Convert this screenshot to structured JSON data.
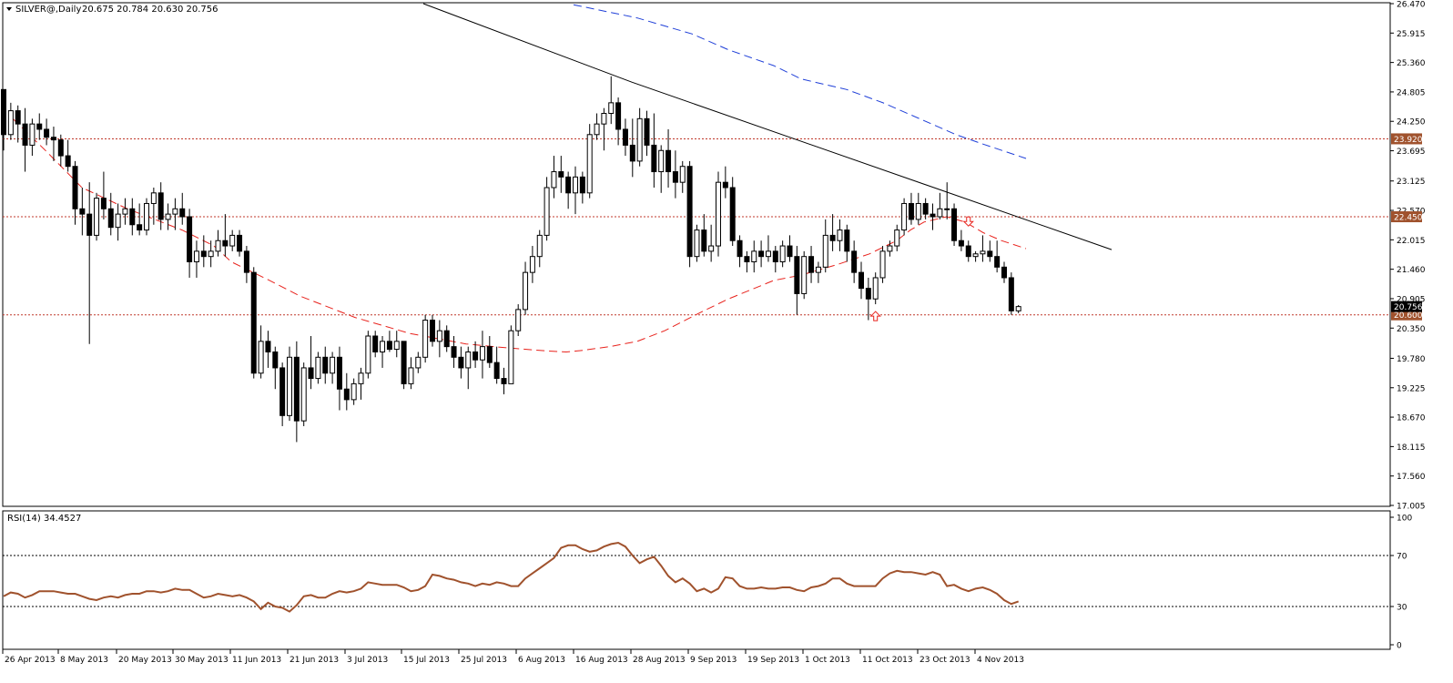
{
  "chart_data": [
    {
      "type": "candlestick",
      "symbol_label": "SILVER@,Daily",
      "ohlc_label": "20.675 20.784 20.630 20.756",
      "ylim": [
        17.005,
        26.47
      ],
      "y_ticks": [
        "26.470",
        "25.915",
        "25.360",
        "24.805",
        "24.250",
        "23.695",
        "23.125",
        "22.570",
        "22.015",
        "21.460",
        "20.905",
        "20.350",
        "19.780",
        "19.225",
        "18.670",
        "18.115",
        "17.560",
        "17.005"
      ],
      "x_tick_labels": [
        "26 Apr 2013",
        "8 May 2013",
        "20 May 2013",
        "30 May 2013",
        "11 Jun 2013",
        "21 Jun 2013",
        "3 Jul 2013",
        "15 Jul 2013",
        "25 Jul 2013",
        "6 Aug 2013",
        "16 Aug 2013",
        "28 Aug 2013",
        "9 Sep 2013",
        "19 Sep 2013",
        "1 Oct 2013",
        "11 Oct 2013",
        "23 Oct 2013",
        "4 Nov 2013"
      ],
      "horizontal_levels": [
        {
          "value": 23.92,
          "label": "23.920"
        },
        {
          "value": 22.45,
          "label": "22.450"
        },
        {
          "value": 20.6,
          "label": "20.600"
        }
      ],
      "current_price_label": "20.756",
      "current_price": 20.756,
      "colors": {
        "up_body": "#ffffff",
        "down_body": "#000000",
        "wick": "#000000",
        "level_line": "#c0392b",
        "level_tag": "#a0522d",
        "ma_fast": "#e8221c",
        "ma_slow": "#1f3fd8",
        "trendline": "#000000",
        "price_tag": "#000000"
      },
      "candles": [
        [
          24.85,
          24.85,
          23.7,
          24.0
        ],
        [
          24.0,
          24.6,
          23.9,
          24.45
        ],
        [
          24.45,
          24.55,
          23.85,
          24.2
        ],
        [
          24.2,
          24.5,
          23.3,
          23.8
        ],
        [
          23.8,
          24.3,
          23.6,
          24.2
        ],
        [
          24.2,
          24.4,
          23.9,
          24.1
        ],
        [
          24.1,
          24.3,
          23.8,
          23.95
        ],
        [
          23.95,
          24.15,
          23.5,
          23.9
        ],
        [
          23.9,
          24.0,
          23.4,
          23.6
        ],
        [
          23.6,
          23.9,
          23.3,
          23.4
        ],
        [
          23.4,
          23.5,
          22.3,
          22.6
        ],
        [
          22.6,
          23.0,
          22.1,
          22.5
        ],
        [
          22.5,
          23.1,
          20.05,
          22.1
        ],
        [
          22.1,
          22.9,
          22.0,
          22.8
        ],
        [
          22.8,
          23.3,
          22.4,
          22.6
        ],
        [
          22.6,
          22.9,
          22.1,
          22.25
        ],
        [
          22.25,
          22.7,
          22.0,
          22.5
        ],
        [
          22.5,
          22.8,
          22.3,
          22.6
        ],
        [
          22.6,
          22.8,
          22.1,
          22.3
        ],
        [
          22.3,
          22.7,
          22.1,
          22.2
        ],
        [
          22.2,
          22.8,
          22.1,
          22.7
        ],
        [
          22.7,
          23.0,
          22.3,
          22.9
        ],
        [
          22.9,
          23.1,
          22.2,
          22.4
        ],
        [
          22.4,
          22.7,
          22.2,
          22.5
        ],
        [
          22.5,
          22.8,
          22.2,
          22.6
        ],
        [
          22.6,
          22.9,
          22.3,
          22.45
        ],
        [
          22.45,
          22.6,
          21.3,
          21.6
        ],
        [
          21.6,
          22.0,
          21.3,
          21.8
        ],
        [
          21.8,
          22.1,
          21.5,
          21.7
        ],
        [
          21.7,
          22.0,
          21.5,
          21.8
        ],
        [
          21.8,
          22.2,
          21.7,
          22.0
        ],
        [
          22.0,
          22.5,
          21.7,
          21.9
        ],
        [
          21.9,
          22.2,
          21.8,
          22.1
        ],
        [
          22.1,
          22.2,
          21.7,
          21.8
        ],
        [
          21.8,
          21.9,
          21.2,
          21.4
        ],
        [
          21.4,
          21.5,
          19.4,
          19.5
        ],
        [
          19.5,
          20.4,
          19.4,
          20.1
        ],
        [
          20.1,
          20.3,
          19.6,
          19.9
        ],
        [
          19.9,
          20.0,
          19.2,
          19.6
        ],
        [
          19.6,
          19.7,
          18.5,
          18.7
        ],
        [
          18.7,
          20.0,
          18.6,
          19.8
        ],
        [
          19.8,
          20.1,
          18.2,
          18.6
        ],
        [
          18.6,
          19.7,
          18.5,
          19.6
        ],
        [
          19.6,
          20.2,
          19.2,
          19.4
        ],
        [
          19.4,
          19.9,
          19.3,
          19.8
        ],
        [
          19.8,
          20.0,
          19.3,
          19.5
        ],
        [
          19.5,
          19.9,
          19.3,
          19.8
        ],
        [
          19.8,
          20.0,
          18.8,
          19.2
        ],
        [
          19.2,
          19.5,
          18.8,
          19.0
        ],
        [
          19.0,
          19.4,
          18.9,
          19.3
        ],
        [
          19.3,
          19.6,
          19.0,
          19.5
        ],
        [
          19.5,
          20.3,
          19.4,
          20.2
        ],
        [
          20.2,
          20.3,
          19.8,
          19.9
        ],
        [
          19.9,
          20.2,
          19.6,
          20.1
        ],
        [
          20.1,
          20.3,
          19.9,
          19.95
        ],
        [
          19.95,
          20.3,
          19.8,
          20.1
        ],
        [
          20.1,
          20.1,
          19.2,
          19.3
        ],
        [
          19.3,
          19.8,
          19.2,
          19.6
        ],
        [
          19.6,
          19.9,
          19.5,
          19.8
        ],
        [
          19.8,
          20.6,
          19.7,
          20.5
        ],
        [
          20.5,
          20.6,
          20.0,
          20.1
        ],
        [
          20.1,
          20.5,
          19.8,
          20.3
        ],
        [
          20.3,
          20.4,
          19.9,
          20.0
        ],
        [
          20.0,
          20.2,
          19.6,
          19.8
        ],
        [
          19.8,
          20.0,
          19.4,
          19.6
        ],
        [
          19.6,
          20.0,
          19.2,
          19.9
        ],
        [
          19.9,
          20.1,
          19.6,
          19.75
        ],
        [
          19.75,
          20.3,
          19.4,
          20.0
        ],
        [
          20.0,
          20.2,
          19.6,
          19.7
        ],
        [
          19.7,
          20.0,
          19.3,
          19.4
        ],
        [
          19.4,
          19.6,
          19.1,
          19.3
        ],
        [
          19.3,
          20.4,
          19.3,
          20.3
        ],
        [
          20.3,
          20.8,
          20.2,
          20.7
        ],
        [
          20.7,
          21.6,
          20.6,
          21.4
        ],
        [
          21.4,
          21.9,
          21.2,
          21.7
        ],
        [
          21.7,
          22.2,
          21.5,
          22.1
        ],
        [
          22.1,
          23.2,
          22.0,
          23.0
        ],
        [
          23.0,
          23.6,
          22.8,
          23.3
        ],
        [
          23.3,
          23.6,
          22.9,
          23.2
        ],
        [
          23.2,
          23.3,
          22.6,
          22.9
        ],
        [
          22.9,
          23.4,
          22.5,
          23.2
        ],
        [
          23.2,
          23.3,
          22.7,
          22.9
        ],
        [
          22.9,
          24.2,
          22.8,
          24.0
        ],
        [
          24.0,
          24.4,
          23.9,
          24.2
        ],
        [
          24.2,
          24.5,
          23.7,
          24.4
        ],
        [
          24.4,
          25.1,
          24.2,
          24.6
        ],
        [
          24.6,
          24.7,
          23.8,
          24.1
        ],
        [
          24.1,
          24.3,
          23.6,
          23.8
        ],
        [
          23.8,
          24.3,
          23.2,
          23.5
        ],
        [
          23.5,
          24.5,
          23.4,
          24.3
        ],
        [
          24.3,
          24.45,
          23.6,
          23.8
        ],
        [
          23.8,
          24.4,
          23.0,
          23.3
        ],
        [
          23.3,
          23.8,
          22.9,
          23.7
        ],
        [
          23.7,
          24.1,
          23.0,
          23.3
        ],
        [
          23.3,
          23.7,
          22.8,
          23.1
        ],
        [
          23.1,
          23.5,
          22.9,
          23.4
        ],
        [
          23.4,
          23.5,
          21.5,
          21.7
        ],
        [
          21.7,
          22.3,
          21.6,
          22.2
        ],
        [
          22.2,
          22.5,
          21.7,
          21.8
        ],
        [
          21.8,
          22.3,
          21.6,
          21.9
        ],
        [
          21.9,
          23.3,
          21.7,
          23.1
        ],
        [
          23.1,
          23.4,
          22.8,
          23.0
        ],
        [
          23.0,
          23.2,
          21.9,
          22.0
        ],
        [
          22.0,
          22.1,
          21.5,
          21.7
        ],
        [
          21.7,
          21.8,
          21.4,
          21.6
        ],
        [
          21.6,
          22.0,
          21.4,
          21.8
        ],
        [
          21.8,
          22.0,
          21.5,
          21.7
        ],
        [
          21.7,
          22.1,
          21.6,
          21.8
        ],
        [
          21.8,
          21.9,
          21.4,
          21.6
        ],
        [
          21.6,
          22.0,
          21.5,
          21.9
        ],
        [
          21.9,
          22.1,
          21.6,
          21.7
        ],
        [
          21.7,
          21.9,
          20.6,
          21.0
        ],
        [
          21.0,
          21.8,
          20.9,
          21.7
        ],
        [
          21.7,
          21.9,
          21.2,
          21.4
        ],
        [
          21.4,
          21.6,
          21.2,
          21.5
        ],
        [
          21.5,
          22.4,
          21.4,
          22.1
        ],
        [
          22.1,
          22.5,
          21.8,
          22.0
        ],
        [
          22.0,
          22.4,
          21.8,
          22.2
        ],
        [
          22.2,
          22.3,
          21.6,
          21.8
        ],
        [
          21.8,
          22.0,
          21.2,
          21.4
        ],
        [
          21.4,
          21.6,
          20.9,
          21.1
        ],
        [
          21.1,
          21.3,
          20.5,
          20.9
        ],
        [
          20.9,
          21.4,
          20.8,
          21.3
        ],
        [
          21.3,
          21.9,
          21.2,
          21.8
        ],
        [
          21.8,
          22.0,
          21.7,
          21.9
        ],
        [
          21.9,
          22.3,
          21.8,
          22.2
        ],
        [
          22.2,
          22.8,
          22.1,
          22.7
        ],
        [
          22.7,
          22.9,
          22.3,
          22.4
        ],
        [
          22.4,
          22.9,
          22.3,
          22.7
        ],
        [
          22.7,
          22.8,
          22.4,
          22.5
        ],
        [
          22.5,
          22.7,
          22.2,
          22.45
        ],
        [
          22.45,
          22.9,
          22.4,
          22.6
        ],
        [
          22.6,
          23.1,
          22.4,
          22.6
        ],
        [
          22.6,
          22.7,
          21.9,
          22.0
        ],
        [
          22.0,
          22.2,
          21.8,
          21.9
        ],
        [
          21.9,
          22.0,
          21.6,
          21.7
        ],
        [
          21.7,
          21.8,
          21.6,
          21.75
        ],
        [
          21.75,
          22.1,
          21.6,
          21.8
        ],
        [
          21.8,
          22.0,
          21.6,
          21.7
        ],
        [
          21.7,
          22.0,
          21.4,
          21.5
        ],
        [
          21.5,
          21.6,
          21.2,
          21.3
        ],
        [
          21.3,
          21.4,
          20.6,
          20.675
        ],
        [
          20.675,
          20.784,
          20.63,
          20.756
        ]
      ],
      "ma_fast_points": [
        [
          14,
          24.3
        ],
        [
          50,
          23.7
        ],
        [
          90,
          23.0
        ],
        [
          140,
          22.6
        ],
        [
          200,
          22.2
        ],
        [
          235,
          21.9
        ],
        [
          254,
          21.6
        ],
        [
          296,
          21.25
        ],
        [
          330,
          20.95
        ],
        [
          390,
          20.55
        ],
        [
          450,
          20.25
        ],
        [
          512,
          20.05
        ],
        [
          555,
          19.98
        ],
        [
          600,
          19.92
        ],
        [
          622,
          19.9
        ],
        [
          640,
          19.93
        ],
        [
          670,
          20.0
        ],
        [
          700,
          20.1
        ],
        [
          730,
          20.3
        ],
        [
          770,
          20.65
        ],
        [
          800,
          20.9
        ],
        [
          850,
          21.25
        ],
        [
          880,
          21.35
        ],
        [
          920,
          21.55
        ],
        [
          955,
          21.75
        ],
        [
          985,
          22.0
        ],
        [
          1000,
          22.2
        ],
        [
          1015,
          22.35
        ],
        [
          1040,
          22.45
        ],
        [
          1060,
          22.35
        ],
        [
          1080,
          22.15
        ],
        [
          1100,
          22.0
        ],
        [
          1127,
          21.85
        ]
      ],
      "ma_slow_points": [
        [
          630,
          26.45
        ],
        [
          700,
          26.2
        ],
        [
          760,
          25.9
        ],
        [
          800,
          25.6
        ],
        [
          850,
          25.3
        ],
        [
          880,
          25.05
        ],
        [
          930,
          24.85
        ],
        [
          970,
          24.6
        ],
        [
          1010,
          24.3
        ],
        [
          1050,
          24.0
        ],
        [
          1080,
          23.82
        ],
        [
          1127,
          23.55
        ]
      ],
      "trendline_points": [
        [
          465,
          26.47
        ],
        [
          694,
          24.99
        ],
        [
          1221,
          21.83
        ]
      ],
      "arrows": [
        {
          "candle": 135,
          "direction": "down"
        },
        {
          "candle": 122,
          "direction": "up"
        }
      ]
    },
    {
      "type": "line",
      "indicator_label": "RSI(14) 34.4527",
      "ylim": [
        0,
        100
      ],
      "y_ticks": [
        "100",
        "70",
        "30",
        "0"
      ],
      "levels": [
        70,
        30
      ],
      "colors": {
        "line": "#a0522d",
        "level_line": "#000000"
      },
      "values": [
        38,
        41,
        40,
        37,
        39,
        42,
        42,
        42,
        41,
        40,
        40,
        38,
        36,
        35,
        37,
        38,
        37,
        39,
        40,
        40,
        42,
        42,
        41,
        42,
        44,
        43,
        43,
        40,
        37,
        38,
        40,
        39,
        38,
        39,
        37,
        34,
        28,
        33,
        30,
        29,
        26,
        31,
        38,
        39,
        37,
        37,
        40,
        42,
        41,
        42,
        44,
        49,
        48,
        47,
        47,
        47,
        45,
        42,
        43,
        46,
        55,
        54,
        52,
        51,
        49,
        48,
        46,
        48,
        47,
        49,
        48,
        46,
        46,
        52,
        56,
        60,
        64,
        68,
        76,
        78,
        78,
        75,
        73,
        74,
        77,
        79,
        80,
        77,
        70,
        64,
        67,
        69,
        62,
        54,
        49,
        52,
        48,
        42,
        44,
        41,
        44,
        53,
        52,
        46,
        44,
        44,
        45,
        44,
        44,
        45,
        45,
        43,
        42,
        45,
        46,
        48,
        52,
        52,
        48,
        46,
        46,
        46,
        46,
        52,
        56,
        58,
        57,
        57,
        56,
        55,
        57,
        55,
        46,
        47,
        44,
        42,
        44,
        45,
        43,
        40,
        35,
        32,
        34
      ]
    }
  ]
}
